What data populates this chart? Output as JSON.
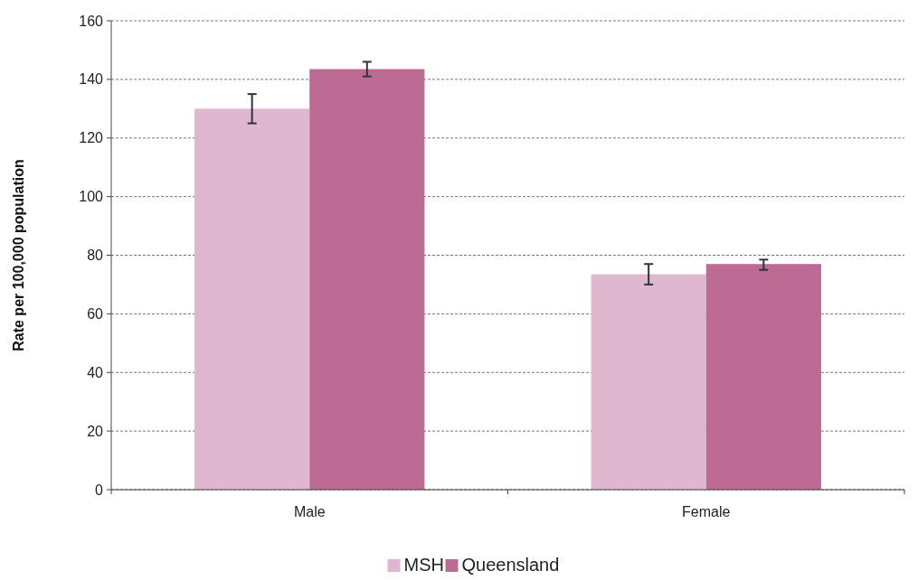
{
  "chart_data": {
    "type": "bar",
    "ylabel": "Rate per 100,000 population",
    "categories": [
      "Male",
      "Female"
    ],
    "series": [
      {
        "name": "MSH",
        "color": "#dfb8cf",
        "values": [
          130,
          73.5
        ],
        "errors": [
          [
            125,
            135
          ],
          [
            70,
            77
          ]
        ]
      },
      {
        "name": "Queensland",
        "color": "#bd6a94",
        "values": [
          143.5,
          77
        ],
        "errors": [
          [
            141,
            146
          ],
          [
            75,
            78.5
          ]
        ]
      }
    ],
    "ylim": [
      0,
      160
    ],
    "yticks": [
      0,
      20,
      40,
      60,
      80,
      100,
      120,
      140,
      160
    ],
    "grid": "y",
    "legend": "bottom"
  }
}
